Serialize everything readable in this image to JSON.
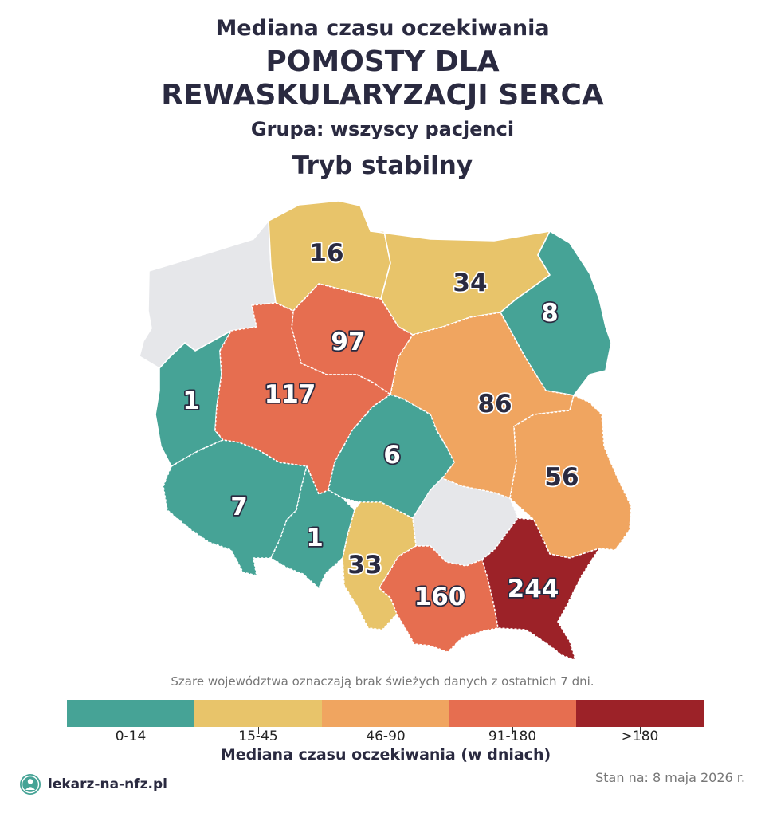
{
  "title": {
    "line1": "Mediana czasu oczekiwania",
    "line2": "POMOSTY DLA",
    "line3": "REWASKULARYZACJI SERCA",
    "group": "Grupa: wszyscy pacjenci",
    "mode": "Tryb stabilny"
  },
  "map": {
    "regions": [
      {
        "id": "zachodniopomorskie",
        "value": "",
        "category": "no-data"
      },
      {
        "id": "pomorskie",
        "value": "16",
        "category": "15-45"
      },
      {
        "id": "warminsko-mazurskie",
        "value": "34",
        "category": "15-45"
      },
      {
        "id": "podlaskie",
        "value": "8",
        "category": "0-14"
      },
      {
        "id": "kujawsko-pomorskie",
        "value": "97",
        "category": "91-180"
      },
      {
        "id": "lubuskie",
        "value": "1",
        "category": "0-14"
      },
      {
        "id": "wielkopolskie",
        "value": "117",
        "category": "91-180"
      },
      {
        "id": "mazowieckie",
        "value": "86",
        "category": "46-90"
      },
      {
        "id": "lodzkie",
        "value": "6",
        "category": "0-14"
      },
      {
        "id": "lubelskie",
        "value": "56",
        "category": "46-90"
      },
      {
        "id": "dolnoslaskie",
        "value": "7",
        "category": "0-14"
      },
      {
        "id": "opolskie",
        "value": "1",
        "category": "0-14"
      },
      {
        "id": "slaskie",
        "value": "33",
        "category": "15-45"
      },
      {
        "id": "swietokrzyskie",
        "value": "",
        "category": "no-data"
      },
      {
        "id": "malopolskie",
        "value": "160",
        "category": "91-180"
      },
      {
        "id": "podkarpackie",
        "value": "244",
        "category": ">180"
      }
    ]
  },
  "colors": {
    "0-14": "#46a396",
    "15-45": "#e8c46a",
    "46-90": "#f0a560",
    "91-180": "#e66e50",
    ">180": "#9c2228",
    "no-data": "#e6e7ea"
  },
  "note": "Szare województwa oznaczają brak świeżych danych z ostatnich 7 dni.",
  "legend": {
    "labels": [
      "0-14",
      "15-45",
      "46-90",
      "91-180",
      ">180"
    ],
    "title": "Mediana czasu oczekiwania (w dniach)"
  },
  "footer": {
    "brand": "lekarz-na-nfz.pl",
    "date": "Stan na: 8 maja 2026 r."
  }
}
